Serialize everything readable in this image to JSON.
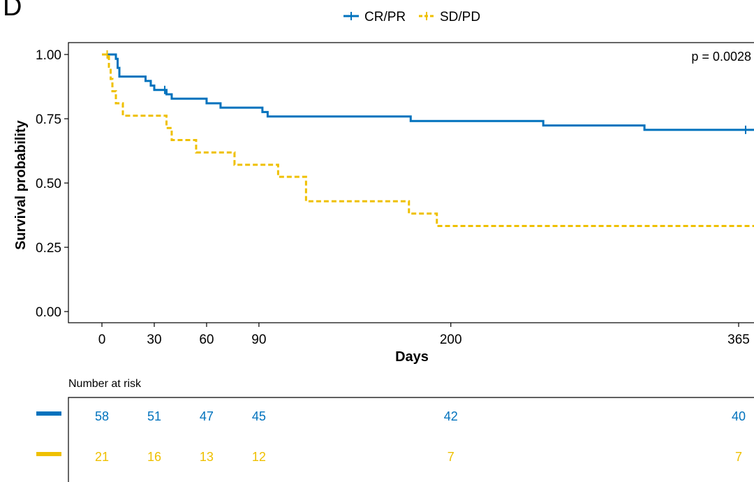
{
  "panel_label": "D",
  "legend": [
    {
      "label": "CR/PR",
      "color": "#0072BD"
    },
    {
      "label": "SD/PD",
      "color": "#EFC000"
    }
  ],
  "chart_data": {
    "type": "line",
    "subtype": "kaplan-meier",
    "xlabel": "Days",
    "ylabel": "Survival probability",
    "x_ticks": [
      0,
      30,
      60,
      90,
      200,
      365
    ],
    "y_ticks": [
      "0.00",
      "0.25",
      "0.50",
      "0.75",
      "1.00"
    ],
    "xlim": [
      0,
      380
    ],
    "ylim": [
      0,
      1
    ],
    "annotation": "p = 0.0028",
    "series": [
      {
        "name": "CR/PR",
        "color": "#0072BD",
        "style": "solid",
        "steps": [
          [
            0,
            1.0
          ],
          [
            8,
            0.983
          ],
          [
            9,
            0.948
          ],
          [
            10,
            0.914
          ],
          [
            25,
            0.897
          ],
          [
            28,
            0.879
          ],
          [
            30,
            0.862
          ],
          [
            37,
            0.845
          ],
          [
            40,
            0.828
          ],
          [
            60,
            0.81
          ],
          [
            68,
            0.793
          ],
          [
            92,
            0.776
          ],
          [
            95,
            0.759
          ],
          [
            177,
            0.741
          ],
          [
            253,
            0.724
          ],
          [
            311,
            0.707
          ]
        ],
        "censor": [
          [
            36,
            0.862
          ],
          [
            369,
            0.707
          ]
        ]
      },
      {
        "name": "SD/PD",
        "color": "#EFC000",
        "style": "dashed",
        "steps": [
          [
            0,
            1.0
          ],
          [
            4,
            0.952
          ],
          [
            5,
            0.905
          ],
          [
            6,
            0.857
          ],
          [
            8,
            0.81
          ],
          [
            12,
            0.762
          ],
          [
            37,
            0.714
          ],
          [
            40,
            0.667
          ],
          [
            54,
            0.619
          ],
          [
            76,
            0.571
          ],
          [
            101,
            0.524
          ],
          [
            117,
            0.429
          ],
          [
            176,
            0.381
          ],
          [
            192,
            0.333
          ]
        ],
        "censor": [
          [
            3,
            1.0
          ]
        ]
      }
    ]
  },
  "risk_table": {
    "title": "Number at risk",
    "rows": [
      {
        "color": "#0072BD",
        "values": [
          "58",
          "51",
          "47",
          "45",
          "42",
          "40"
        ]
      },
      {
        "color": "#EFC000",
        "values": [
          "21",
          "16",
          "13",
          "12",
          "7",
          "7"
        ]
      }
    ]
  }
}
